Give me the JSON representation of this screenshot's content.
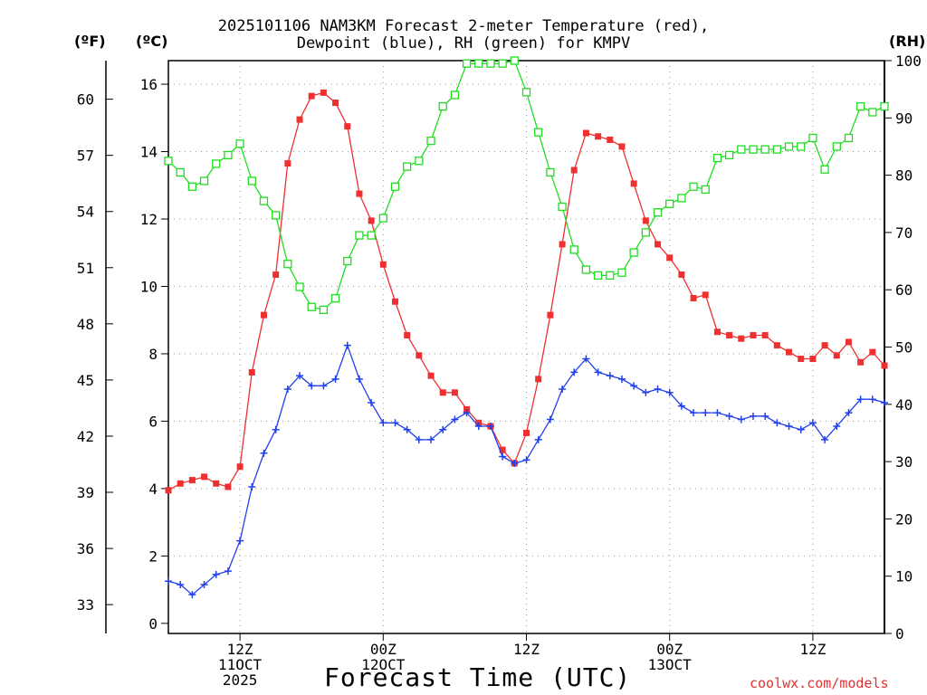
{
  "chart_data": {
    "type": "line",
    "title_line1": "2025101106 NAM3KM Forecast 2-meter Temperature (red),",
    "title_line2": "Dewpoint (blue), RH (green) for KMPV",
    "xlabel": "Forecast Time (UTC)",
    "credit": "coolwx.com/models",
    "units": {
      "fahrenheit": "(ºF)",
      "celsius": "(ºC)",
      "rh": "(RH)"
    },
    "x_hours_range": [
      6,
      66
    ],
    "celsius_ylim": [
      -0.3,
      16.7
    ],
    "rh_ylim": [
      0,
      100
    ],
    "celsius_ticks": [
      0,
      2,
      4,
      6,
      8,
      10,
      12,
      14,
      16
    ],
    "fahrenheit_ticks": [
      33,
      36,
      39,
      42,
      45,
      48,
      51,
      54,
      57,
      60
    ],
    "rh_ticks": [
      0,
      10,
      20,
      30,
      40,
      50,
      60,
      70,
      80,
      90,
      100
    ],
    "x_ticks": [
      {
        "hour": 12,
        "lines": [
          "12Z",
          "11OCT",
          "2025"
        ]
      },
      {
        "hour": 24,
        "lines": [
          "00Z",
          "12OCT"
        ]
      },
      {
        "hour": 36,
        "lines": [
          "12Z"
        ]
      },
      {
        "hour": 48,
        "lines": [
          "00Z",
          "13OCT"
        ]
      },
      {
        "hour": 60,
        "lines": [
          "12Z"
        ]
      }
    ],
    "series": [
      {
        "name": "Temperature",
        "unit": "C",
        "color": "#ee3030",
        "marker": "filled-square",
        "hours": [
          6,
          7,
          8,
          9,
          10,
          11,
          12,
          13,
          14,
          15,
          16,
          17,
          18,
          19,
          20,
          21,
          22,
          23,
          24,
          25,
          26,
          27,
          28,
          29,
          30,
          31,
          32,
          33,
          34,
          35,
          36,
          37,
          38,
          39,
          40,
          41,
          42,
          43,
          44,
          45,
          46,
          47,
          48,
          49,
          50,
          51,
          52,
          53,
          54,
          55,
          56,
          57,
          58,
          59,
          60,
          61,
          62,
          63,
          64,
          65,
          66
        ],
        "values": [
          3.95,
          4.15,
          4.25,
          4.35,
          4.15,
          4.05,
          4.65,
          7.45,
          9.15,
          10.35,
          13.65,
          14.95,
          15.65,
          15.75,
          15.45,
          14.75,
          12.75,
          11.95,
          10.65,
          9.55,
          8.55,
          7.95,
          7.35,
          6.85,
          6.85,
          6.35,
          5.95,
          5.85,
          5.15,
          4.75,
          5.65,
          7.25,
          9.15,
          11.25,
          13.45,
          14.55,
          14.45,
          14.35,
          14.15,
          13.05,
          11.95,
          11.25,
          10.85,
          10.35,
          9.65,
          9.75,
          8.65,
          8.55,
          8.45,
          8.55,
          8.55,
          8.25,
          8.05,
          7.85,
          7.85,
          8.25,
          7.95,
          8.35,
          7.75,
          8.05,
          7.65
        ]
      },
      {
        "name": "Dewpoint",
        "unit": "C",
        "color": "#2040ee",
        "marker": "plus",
        "hours": [
          6,
          7,
          8,
          9,
          10,
          11,
          12,
          13,
          14,
          15,
          16,
          17,
          18,
          19,
          20,
          21,
          22,
          23,
          24,
          25,
          26,
          27,
          28,
          29,
          30,
          31,
          32,
          33,
          34,
          35,
          36,
          37,
          38,
          39,
          40,
          41,
          42,
          43,
          44,
          45,
          46,
          47,
          48,
          49,
          50,
          51,
          52,
          53,
          54,
          55,
          56,
          57,
          58,
          59,
          60,
          61,
          62,
          63,
          64,
          65,
          66
        ],
        "values": [
          1.25,
          1.15,
          0.85,
          1.15,
          1.45,
          1.55,
          2.45,
          4.05,
          5.05,
          5.75,
          6.95,
          7.35,
          7.05,
          7.05,
          7.25,
          8.25,
          7.25,
          6.55,
          5.95,
          5.95,
          5.75,
          5.45,
          5.45,
          5.75,
          6.05,
          6.25,
          5.85,
          5.85,
          4.95,
          4.75,
          4.85,
          5.45,
          6.05,
          6.95,
          7.45,
          7.85,
          7.45,
          7.35,
          7.25,
          7.05,
          6.85,
          6.95,
          6.85,
          6.45,
          6.25,
          6.25,
          6.25,
          6.15,
          6.05,
          6.15,
          6.15,
          5.95,
          5.85,
          5.75,
          5.95,
          5.45,
          5.85,
          6.25,
          6.65,
          6.65,
          6.55
        ]
      },
      {
        "name": "RH",
        "unit": "%",
        "color": "#20dd20",
        "marker": "open-square",
        "hours": [
          6,
          7,
          8,
          9,
          10,
          11,
          12,
          13,
          14,
          15,
          16,
          17,
          18,
          19,
          20,
          21,
          22,
          23,
          24,
          25,
          26,
          27,
          28,
          29,
          30,
          31,
          32,
          33,
          34,
          35,
          36,
          37,
          38,
          39,
          40,
          41,
          42,
          43,
          44,
          45,
          46,
          47,
          48,
          49,
          50,
          51,
          52,
          53,
          54,
          55,
          56,
          57,
          58,
          59,
          60,
          61,
          62,
          63,
          64,
          65,
          66
        ],
        "values": [
          82.5,
          80.5,
          78.0,
          79.0,
          82.0,
          83.5,
          85.5,
          79.0,
          75.5,
          73.0,
          64.5,
          60.5,
          57.0,
          56.5,
          58.5,
          65.0,
          69.5,
          69.5,
          72.5,
          78.0,
          81.5,
          82.5,
          86.0,
          92.0,
          94.0,
          99.5,
          99.5,
          99.5,
          99.5,
          100.0,
          94.5,
          87.5,
          80.5,
          74.5,
          67.0,
          63.5,
          62.5,
          62.5,
          63.0,
          66.5,
          70.0,
          73.5,
          75.0,
          76.0,
          78.0,
          77.5,
          83.0,
          83.5,
          84.5,
          84.5,
          84.5,
          84.5,
          85.0,
          85.0,
          86.5,
          81.0,
          85.0,
          86.5,
          92.0,
          91.0,
          92.0
        ]
      }
    ]
  }
}
